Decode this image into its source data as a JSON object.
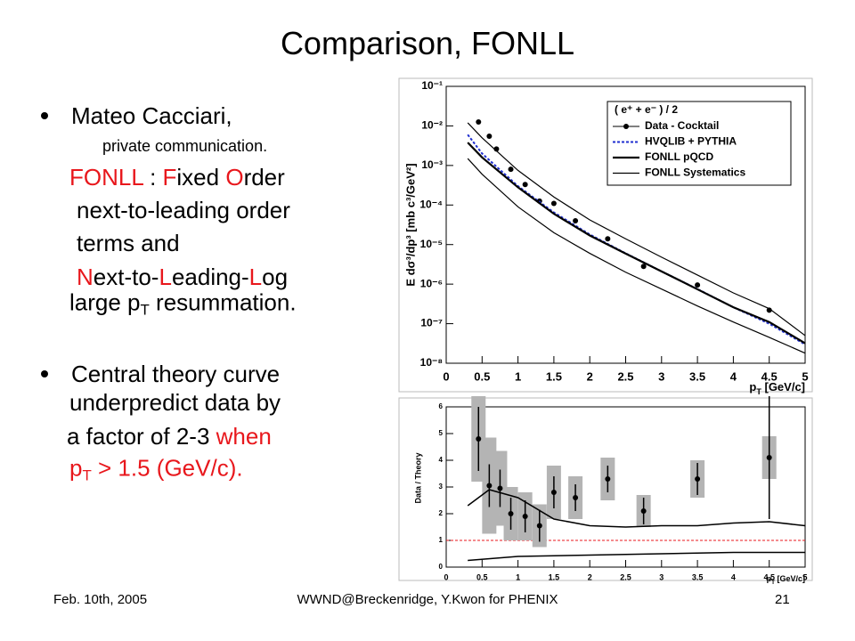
{
  "title": "Comparison, FONLL",
  "accent_color": "#e8171c",
  "lines": [
    {
      "bullet": true,
      "x": 80,
      "y": 130,
      "size": 26,
      "segments": [
        {
          "t": "Mateo Cacciari,"
        }
      ]
    },
    {
      "x": 115,
      "y": 164,
      "size": 18,
      "segments": [
        {
          "t": "private communication."
        }
      ]
    },
    {
      "x": 78,
      "y": 199,
      "size": 26,
      "segments": [
        {
          "t": "FONLL",
          "red": true
        },
        {
          "t": " : "
        },
        {
          "t": "F",
          "red": true
        },
        {
          "t": "ixed "
        },
        {
          "t": "O",
          "red": true
        },
        {
          "t": "rder"
        }
      ]
    },
    {
      "x": 86,
      "y": 236,
      "size": 26,
      "segments": [
        {
          "t": "next-to-leading order"
        }
      ]
    },
    {
      "x": 86,
      "y": 273,
      "size": 26,
      "segments": [
        {
          "t": "terms and"
        }
      ]
    },
    {
      "x": 86,
      "y": 311,
      "size": 26,
      "segments": [
        {
          "t": "N",
          "red": true
        },
        {
          "t": "ext-to-"
        },
        {
          "t": "L",
          "red": true
        },
        {
          "t": "eading-"
        },
        {
          "t": "L",
          "red": true
        },
        {
          "t": "og"
        }
      ]
    },
    {
      "x": 78,
      "y": 342,
      "size": 26,
      "segments": [
        {
          "t": "large p"
        },
        {
          "t": "T",
          "sub": true
        },
        {
          "t": " resummation."
        }
      ]
    },
    {
      "bullet": true,
      "x": 80,
      "y": 420,
      "size": 26,
      "segments": [
        {
          "t": "Central theory curve"
        }
      ]
    },
    {
      "x": 78,
      "y": 452,
      "size": 26,
      "segments": [
        {
          "t": "underpredict data by"
        }
      ]
    },
    {
      "x": 75,
      "y": 490,
      "size": 26,
      "segments": [
        {
          "t": "a factor of 2-3 "
        },
        {
          "t": "when",
          "red": true
        }
      ]
    },
    {
      "x": 78,
      "y": 528,
      "size": 26,
      "segments": [
        {
          "t": "p",
          "red": true
        },
        {
          "t": "T",
          "sub": true,
          "red": true
        },
        {
          "t": " > 1.5 (GeV/c).",
          "red": true
        }
      ]
    }
  ],
  "footer": {
    "left": "Feb. 10th, 2005",
    "center": "WWND@Breckenridge, Y.Kwon for PHENIX",
    "right": "21"
  },
  "chart_data": [
    {
      "type": "scatter",
      "ylabel": "E dσ³/dp³ [mb c³/GeV²]",
      "xlabel": [
        {
          "t": "p"
        },
        {
          "t": "T",
          "sub": true
        },
        {
          "t": " [GeV/c]"
        }
      ],
      "ylog": true,
      "xlim": [
        0,
        5
      ],
      "ylim": [
        1e-08,
        0.1
      ],
      "xticks": [
        0,
        0.5,
        1,
        1.5,
        2,
        2.5,
        3,
        3.5,
        4,
        4.5,
        5
      ],
      "yticks": [
        {
          "value": 1e-08,
          "label": "10⁻⁸"
        },
        {
          "value": 1e-07,
          "label": "10⁻⁷"
        },
        {
          "value": 1e-06,
          "label": "10⁻⁶"
        },
        {
          "value": 1e-05,
          "label": "10⁻⁵"
        },
        {
          "value": 0.0001,
          "label": "10⁻⁴"
        },
        {
          "value": 0.001,
          "label": "10⁻³"
        },
        {
          "value": 0.01,
          "label": "10⁻²"
        },
        {
          "value": 0.1,
          "label": "10⁻¹"
        }
      ],
      "legend_title": "( e⁺ + e⁻ ) / 2",
      "legend": "top-right",
      "series": [
        {
          "name": "Data - Cocktail",
          "kind": "points",
          "color": "#000000",
          "x": [
            0.45,
            0.6,
            0.7,
            0.9,
            1.1,
            1.3,
            1.5,
            1.8,
            2.25,
            2.75,
            3.5,
            4.5
          ],
          "values": [
            0.0126,
            0.0055,
            0.0026,
            0.0008,
            0.00033,
            0.000126,
            0.00011,
            4e-05,
            1.4e-05,
            2.8e-06,
            9.5e-07,
            2.2e-07
          ]
        },
        {
          "name": "HVQLIB + PYTHIA",
          "kind": "line",
          "dash": true,
          "width": 2,
          "color": "#1f2fd0",
          "x": [
            0.3,
            0.5,
            1,
            1.5,
            2,
            2.5,
            3,
            3.5,
            4,
            4.5,
            5
          ],
          "values": [
            0.006,
            0.002,
            0.0003,
            6.5e-05,
            1.8e-05,
            6e-06,
            2.1e-06,
            7.5e-07,
            2.6e-07,
            1e-07,
            3e-08
          ]
        },
        {
          "name": "FONLL pQCD",
          "kind": "line",
          "width": 2.2,
          "color": "#000000",
          "x": [
            0.3,
            0.5,
            1,
            1.5,
            2,
            2.5,
            3,
            3.5,
            4,
            4.5,
            5
          ],
          "values": [
            0.0038,
            0.0016,
            0.00028,
            6e-05,
            1.7e-05,
            5.9e-06,
            2.1e-06,
            7.4e-07,
            2.6e-07,
            1.1e-07,
            3.2e-08
          ]
        },
        {
          "name": "FONLL Systematics",
          "kind": "band",
          "width": 1.2,
          "color": "#000000",
          "x": [
            0.3,
            0.5,
            1,
            1.5,
            2,
            2.5,
            3,
            3.5,
            4,
            4.5,
            5
          ],
          "upper": [
            0.012,
            0.005,
            0.00075,
            0.00016,
            4.2e-05,
            1.4e-05,
            4.8e-06,
            1.7e-06,
            6e-07,
            2.4e-07,
            5e-08
          ],
          "lower": [
            0.0015,
            0.0006,
            9e-05,
            2e-05,
            6e-06,
            2e-06,
            7.5e-07,
            2.8e-07,
            1.1e-07,
            4.5e-08,
            1.8e-08
          ]
        }
      ]
    },
    {
      "type": "scatter",
      "ylabel": "Data / Theory",
      "xlabel": [
        {
          "t": "p"
        },
        {
          "t": "T",
          "sub": true
        },
        {
          "t": " [GeV/c]"
        }
      ],
      "xlim": [
        0,
        5
      ],
      "ylim": [
        0,
        6
      ],
      "xticks": [
        0,
        0.5,
        1,
        1.5,
        2,
        2.5,
        3,
        3.5,
        4,
        4.5,
        5
      ],
      "yticks": [
        0,
        1,
        2,
        3,
        4,
        5,
        6
      ],
      "reference": 1,
      "reference_color": "#e8171c",
      "series": [
        {
          "kind": "points",
          "color": "#000000",
          "sys_color": "#b4b4b4",
          "x": [
            0.45,
            0.6,
            0.75,
            0.9,
            1.1,
            1.3,
            1.5,
            1.8,
            2.25,
            2.75,
            3.5,
            4.5
          ],
          "values": [
            4.8,
            3.05,
            2.95,
            2.0,
            1.9,
            1.55,
            2.8,
            2.6,
            3.3,
            2.1,
            3.3,
            4.1
          ],
          "errors": [
            1.2,
            0.8,
            0.7,
            0.6,
            0.6,
            0.6,
            0.6,
            0.5,
            0.5,
            0.5,
            0.6,
            2.3
          ],
          "sys": [
            1.6,
            1.8,
            1.4,
            1.0,
            0.9,
            0.8,
            1.0,
            0.8,
            0.8,
            0.6,
            0.7,
            0.8
          ]
        },
        {
          "kind": "line",
          "width": 1.5,
          "color": "#000000",
          "x": [
            0.3,
            0.6,
            1,
            1.5,
            2,
            2.5,
            3,
            3.5,
            4,
            4.5,
            5
          ],
          "values": [
            2.3,
            2.9,
            2.6,
            1.8,
            1.55,
            1.5,
            1.55,
            1.55,
            1.65,
            1.7,
            1.55
          ]
        },
        {
          "kind": "line",
          "width": 1.5,
          "color": "#000000",
          "x": [
            0.3,
            1,
            2,
            3,
            4,
            5
          ],
          "values": [
            0.25,
            0.4,
            0.45,
            0.5,
            0.55,
            0.55
          ]
        }
      ]
    }
  ]
}
